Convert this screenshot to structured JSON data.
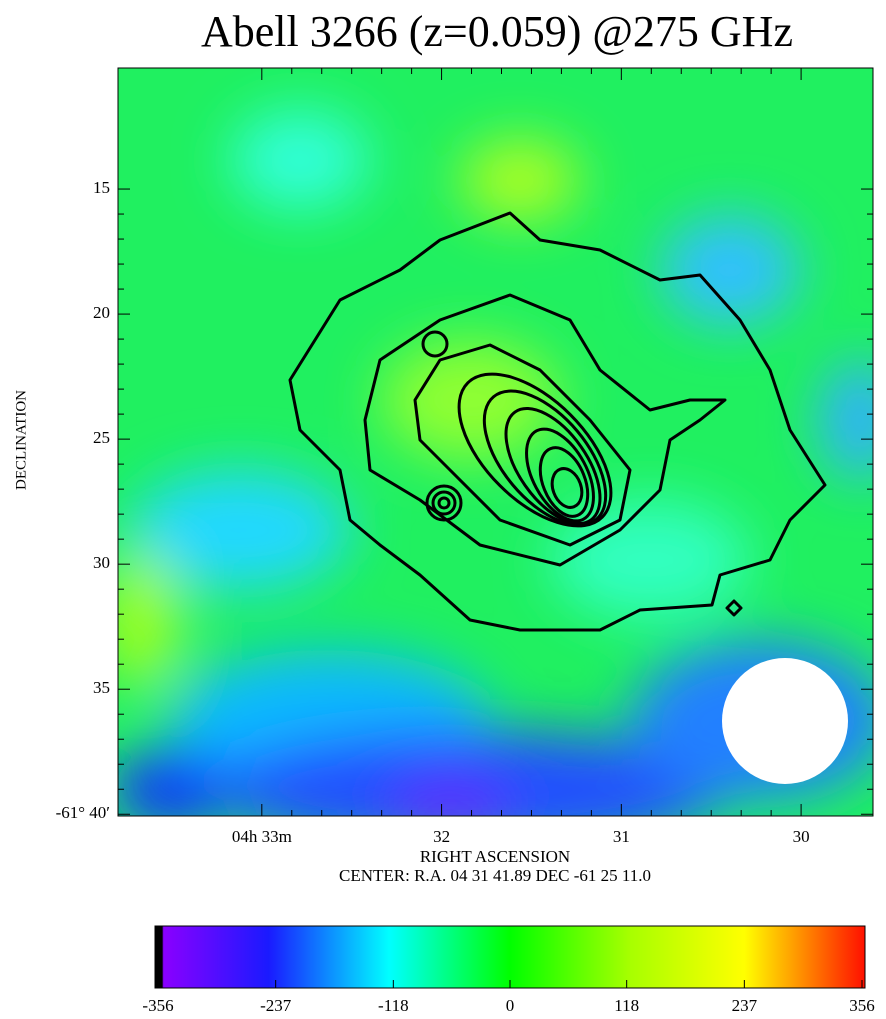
{
  "chart_data": {
    "type": "image",
    "title": "Abell 3266 (z=0.059) @275 GHz",
    "y_label": "DECLINATION",
    "x_label": "RIGHT ASCENSION",
    "subtitle": "CENTER:  R.A. 04 31 41.89    DEC  -61 25 11.0",
    "xlim": [
      33.8,
      29.6
    ],
    "xticks": [
      {
        "value": 33,
        "label": "04h 33m"
      },
      32,
      31,
      30
    ],
    "ylim": [
      40.07,
      10.16
    ],
    "yticks": [
      15,
      20,
      25,
      30,
      35,
      {
        "value": 40,
        "label": "-61° 40′"
      }
    ],
    "colorbar": {
      "lim": [
        -356,
        356
      ],
      "ticks": [
        -356,
        -237,
        -118,
        0,
        118,
        237,
        356
      ]
    }
  }
}
